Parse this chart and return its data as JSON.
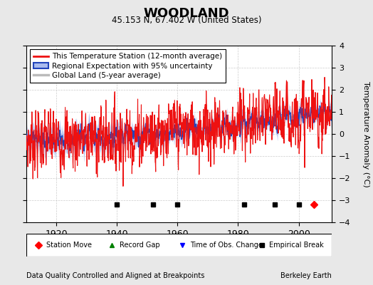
{
  "title": "WOODLAND",
  "subtitle": "45.153 N, 67.402 W (United States)",
  "ylabel": "Temperature Anomaly (°C)",
  "xlabel_note": "Data Quality Controlled and Aligned at Breakpoints",
  "credit": "Berkeley Earth",
  "year_start": 1910,
  "year_end": 2011,
  "ylim": [
    -4,
    4
  ],
  "yticks": [
    -4,
    -3,
    -2,
    -1,
    0,
    1,
    2,
    3,
    4
  ],
  "xticks": [
    1920,
    1940,
    1960,
    1980,
    2000
  ],
  "station_move_years": [
    2005
  ],
  "time_obs_change_years": [],
  "empirical_break_years": [
    1940,
    1952,
    1960,
    1982,
    1992,
    2000
  ],
  "record_gap_years": [],
  "legend_entries": [
    "This Temperature Station (12-month average)",
    "Regional Expectation with 95% uncertainty",
    "Global Land (5-year average)"
  ],
  "background_color": "#E8E8E8",
  "plot_bg_color": "#FFFFFF"
}
